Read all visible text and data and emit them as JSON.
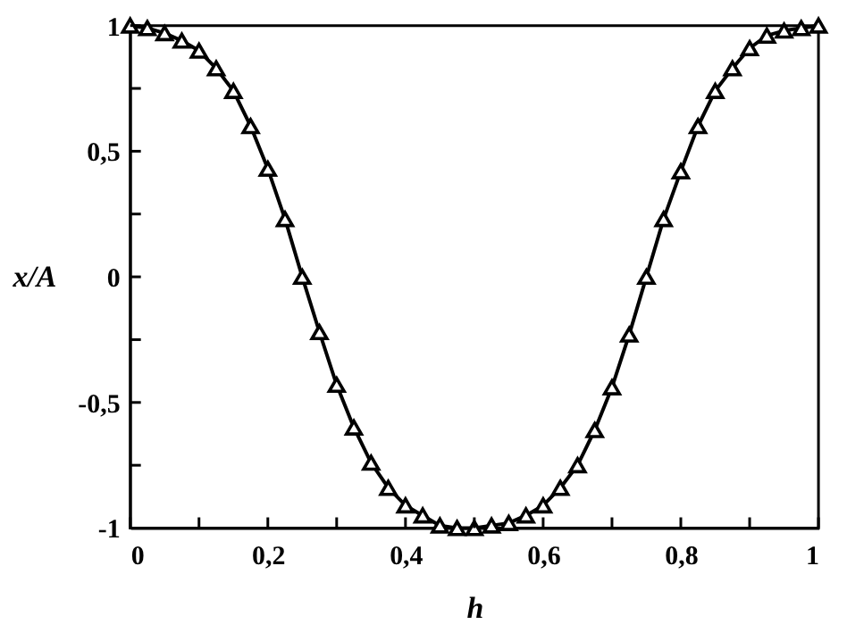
{
  "chart_data": {
    "type": "line",
    "xlabel": "h",
    "ylabel": "x/A",
    "marker": "triangle",
    "line_style": "solid",
    "grid": false,
    "x": [
      0,
      0.025,
      0.05,
      0.075,
      0.1,
      0.125,
      0.15,
      0.175,
      0.2,
      0.225,
      0.25,
      0.275,
      0.3,
      0.325,
      0.35,
      0.375,
      0.4,
      0.425,
      0.45,
      0.475,
      0.5,
      0.525,
      0.55,
      0.575,
      0.6,
      0.625,
      0.65,
      0.675,
      0.7,
      0.725,
      0.75,
      0.775,
      0.8,
      0.825,
      0.85,
      0.875,
      0.9,
      0.925,
      0.95,
      0.975,
      1
    ],
    "series": [
      {
        "color": "#000000",
        "values": [
          1,
          0.99,
          0.97,
          0.94,
          0.9,
          0.83,
          0.74,
          0.6,
          0.43,
          0.23,
          0,
          -0.22,
          -0.43,
          -0.6,
          -0.74,
          -0.84,
          -0.91,
          -0.95,
          -0.99,
          -1,
          -1,
          -0.99,
          -0.98,
          -0.95,
          -0.91,
          -0.84,
          -0.75,
          -0.61,
          -0.44,
          -0.23,
          0,
          0.23,
          0.42,
          0.6,
          0.74,
          0.83,
          0.91,
          0.96,
          0.98,
          0.99,
          1
        ]
      }
    ],
    "xlim": [
      0,
      1
    ],
    "ylim": [
      -1,
      1
    ],
    "xticks": [
      0,
      {
        "value": 0.1,
        "label": null
      },
      {
        "value": 0.2,
        "label": "0,2"
      },
      {
        "value": 0.3,
        "label": null
      },
      {
        "value": 0.4,
        "label": "0,4"
      },
      {
        "value": 0.5,
        "label": null
      },
      {
        "value": 0.6,
        "label": "0,6"
      },
      {
        "value": 0.7,
        "label": null
      },
      {
        "value": 0.8,
        "label": "0,8"
      },
      {
        "value": 0.9,
        "label": null
      },
      1
    ],
    "yticks": [
      -1,
      {
        "value": -0.75,
        "label": null
      },
      {
        "value": -0.5,
        "label": "-0,5"
      },
      {
        "value": -0.25,
        "label": null
      },
      0,
      {
        "value": 0.25,
        "label": null
      },
      {
        "value": 0.5,
        "label": "0,5"
      },
      {
        "value": 0.75,
        "label": null
      },
      1
    ]
  }
}
